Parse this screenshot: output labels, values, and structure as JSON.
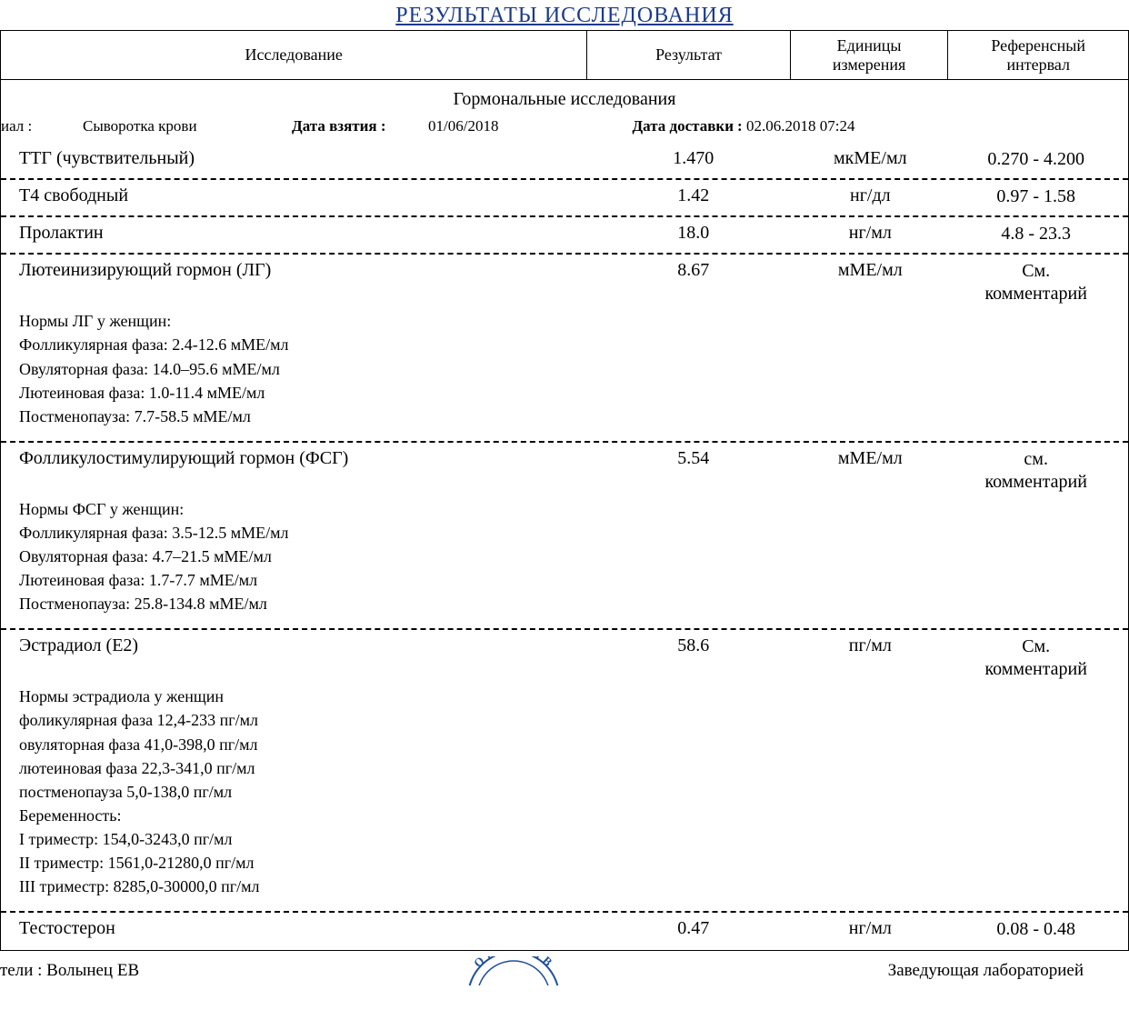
{
  "title": "РЕЗУЛЬТАТЫ ИССЛЕДОВАНИЯ",
  "headers": {
    "test": "Исследование",
    "result": "Результат",
    "units": "Единицы\nизмерения",
    "reference": "Референсный\nинтервал"
  },
  "section": "Гормональные исследования",
  "meta": {
    "material_label": "иал :",
    "material_value": "Сыворотка крови",
    "sample_date_label": "Дата взятия :",
    "sample_date_value": "01/06/2018",
    "delivery_label": "Дата доставки",
    "delivery_colon": ":",
    "delivery_value": "02.06.2018 07:24"
  },
  "rows": [
    {
      "test": "ТТГ (чувствительный)",
      "result": "1.470",
      "units": "мкМЕ/мл",
      "reference": "0.270 - 4.200",
      "notes": ""
    },
    {
      "test": "Т4 свободный",
      "result": "1.42",
      "units": "нг/дл",
      "reference": "0.97 - 1.58",
      "notes": ""
    },
    {
      "test": "Пролактин",
      "result": "18.0",
      "units": "нг/мл",
      "reference": "4.8 - 23.3",
      "notes": ""
    },
    {
      "test": "Лютеинизирующий гормон (ЛГ)",
      "result": "8.67",
      "units": "мМЕ/мл",
      "reference": "См.\nкомментарий",
      "notes": "Нормы ЛГ у женщин:\nФолликулярная фаза: 2.4-12.6 мМЕ/мл\nОвуляторная фаза:  14.0–95.6 мМЕ/мл\nЛютеиновая фаза: 1.0-11.4 мМЕ/мл\nПостменопауза: 7.7-58.5 мМЕ/мл\n"
    },
    {
      "test": "Фолликулостимулирующий гормон (ФСГ)",
      "result": "5.54",
      "units": "мМЕ/мл",
      "reference": "см.\nкомментарий",
      "notes": "Нормы ФСГ у женщин:\nФолликулярная фаза: 3.5-12.5 мМЕ/мл\nОвуляторная фаза:  4.7–21.5 мМЕ/мл\nЛютеиновая фаза: 1.7-7.7 мМЕ/мл\nПостменопауза: 25.8-134.8 мМЕ/мл\n"
    },
    {
      "test": "Эстрадиол (Е2)",
      "result": "58.6",
      "units": "пг/мл",
      "reference": "См.\nкомментарий",
      "notes": "Нормы эстрадиола у женщин\nфоликулярная фаза 12,4-233 пг/мл\nовуляторная фаза 41,0-398,0 пг/мл\nлютеиновая фаза 22,3-341,0 пг/мл\nпостменопауза 5,0-138,0 пг/мл\nБеременность:\nI триместр: 154,0-3243,0 пг/мл\nII триместр: 1561,0-21280,0 пг/мл\nIII триместр: 8285,0-30000,0 пг/мл\n"
    },
    {
      "test": "Тестостерон",
      "result": "0.47",
      "units": "нг/мл",
      "reference": "0.08 - 0.48",
      "notes": ""
    }
  ],
  "footer": {
    "left": "тели  : Волынец ЕВ",
    "right": "Заведующая лабораторией",
    "stamp_text_top": "ОТВЕТСТВ"
  },
  "colors": {
    "title": "#1a3b8c",
    "stamp": "#1d4f9c",
    "border": "#000000",
    "text": "#000000",
    "background": "#ffffff"
  }
}
